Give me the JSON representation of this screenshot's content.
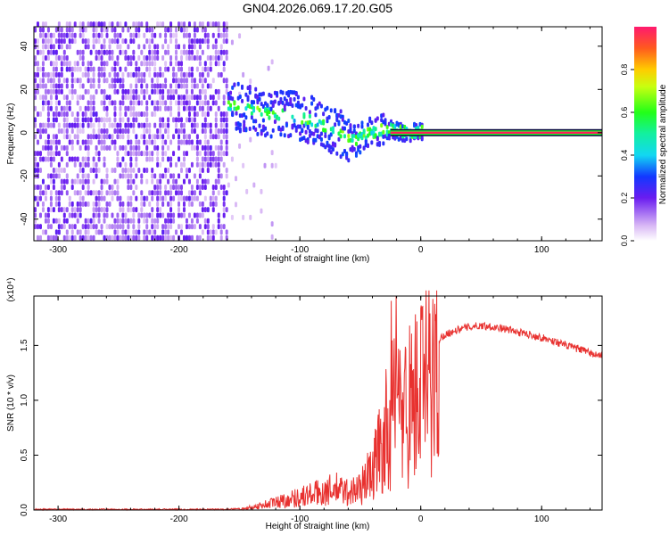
{
  "chart_data": [
    {
      "type": "heatmap",
      "title": "GN04.2026.069.17.20.G05",
      "xlabel": "Height of straight line (km)",
      "ylabel": "Frequency (Hz)",
      "xlim": [
        -320,
        150
      ],
      "ylim": [
        -50,
        49
      ],
      "xticks": [
        -300,
        -200,
        -100,
        0,
        100
      ],
      "yticks": [
        -40,
        -20,
        0,
        20,
        40
      ],
      "colorbar": {
        "label": "Normalized spectral amplitude",
        "range": [
          0.0,
          1.0
        ],
        "ticks": [
          0.0,
          0.2,
          0.4,
          0.6,
          0.8
        ],
        "tick_labels": [
          "0.0",
          "0.2",
          "0.4",
          "0.6",
          "0.8"
        ]
      },
      "features": {
        "noise_region_x": [
          -320,
          -160
        ],
        "trail_points": [
          [
            -155,
            12
          ],
          [
            -140,
            10
          ],
          [
            -125,
            8
          ],
          [
            -110,
            8
          ],
          [
            -95,
            6
          ],
          [
            -80,
            3
          ],
          [
            -65,
            -2
          ],
          [
            -55,
            -4
          ],
          [
            -45,
            -1
          ],
          [
            -35,
            1
          ],
          [
            -25,
            1
          ],
          [
            -15,
            0
          ],
          [
            -5,
            0
          ]
        ],
        "line_x": [
          0,
          150
        ],
        "line_freq": 0
      }
    },
    {
      "type": "line",
      "xlabel": "Height of straight line (km)",
      "ylabel": "SNR (10 * v/v)",
      "y_multiplier": "(x10⁴)",
      "xlim": [
        -320,
        150
      ],
      "ylim": [
        0,
        1.95
      ],
      "xticks": [
        -300,
        -200,
        -100,
        0,
        100
      ],
      "yticks": [
        0.0,
        0.5,
        1.0,
        1.5
      ],
      "ytick_labels": [
        "0.0",
        "0.5",
        "1.0",
        "1.5"
      ],
      "series": [
        {
          "name": "SNR",
          "color": "#e8312f",
          "x": [
            -320,
            -160,
            -150,
            -140,
            -130,
            -120,
            -110,
            -100,
            -90,
            -80,
            -70,
            -60,
            -50,
            -45,
            -40,
            -35,
            -30,
            -25,
            -22,
            -20,
            -15,
            -10,
            -5,
            0,
            10,
            20,
            30,
            40,
            50,
            60,
            70,
            80,
            90,
            100,
            110,
            120,
            130,
            140,
            150
          ],
          "y": [
            0.0,
            0.0,
            0.01,
            0.03,
            0.06,
            0.09,
            0.12,
            0.15,
            0.18,
            0.21,
            0.24,
            0.2,
            0.25,
            0.35,
            0.45,
            0.65,
            0.85,
            1.0,
            1.15,
            1.1,
            1.15,
            1.2,
            1.3,
            1.4,
            1.5,
            1.6,
            1.64,
            1.67,
            1.68,
            1.67,
            1.65,
            1.62,
            1.6,
            1.57,
            1.54,
            1.5,
            1.47,
            1.43,
            1.4
          ]
        }
      ]
    }
  ],
  "colors": {
    "line": "#e8312f",
    "spine": "#000000"
  }
}
